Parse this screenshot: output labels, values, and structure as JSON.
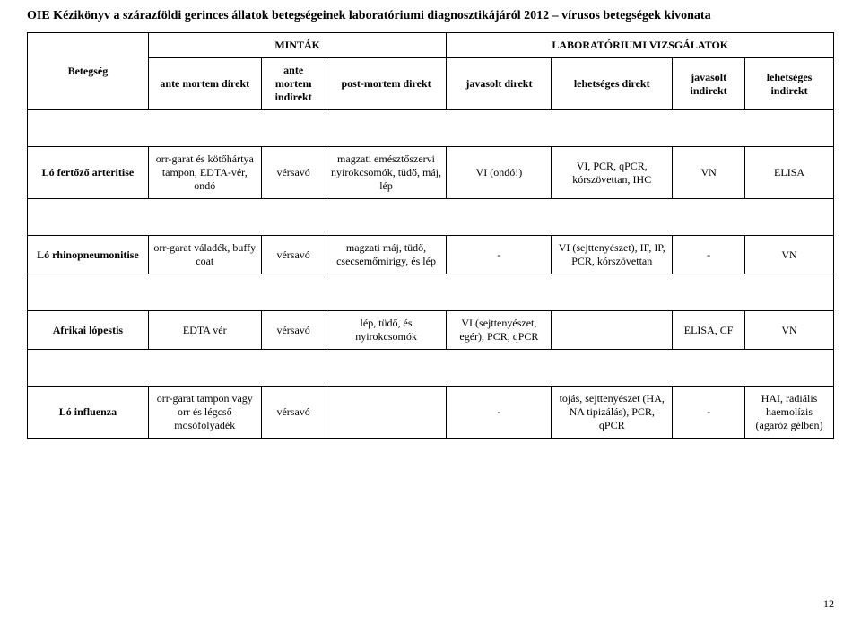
{
  "header": "OIE Kézikönyv a szárazföldi gerinces állatok betegségeinek laboratóriumi diagnosztikájáról 2012 – vírusos betegségek kivonata",
  "table": {
    "group_samples": "MINTÁK",
    "group_labtests": "LABORATÓRIUMI VIZSGÁLATOK",
    "col_disease": "Betegség",
    "col_amd": "ante mortem direkt",
    "col_ami": "ante mortem indirekt",
    "col_pmd": "post-mortem direkt",
    "col_jd": "javasolt direkt",
    "col_ld": "lehetséges direkt",
    "col_ji": "javasolt indirekt",
    "col_li": "lehetséges indirekt"
  },
  "rows": [
    {
      "disease": "Ló fertőző arteritise",
      "amd": "orr-garat és kötőhártya tampon, EDTA-vér, ondó",
      "ami": "vérsavó",
      "pmd": "magzati emésztőszervi nyirokcsomók, tüdő, máj, lép",
      "jd": "VI (ondó!)",
      "ld": "VI, PCR, qPCR, kórszövettan, IHC",
      "ji": "VN",
      "li": "ELISA"
    },
    {
      "disease": "Ló rhinopneumonitise",
      "amd": "orr-garat váladék, buffy coat",
      "ami": "vérsavó",
      "pmd": "magzati máj, tüdő, csecsemőmirigy, és lép",
      "jd": "-",
      "ld": "VI (sejttenyészet), IF, IP, PCR, kórszövettan",
      "ji": "-",
      "li": "VN"
    },
    {
      "disease": "Afrikai lópestis",
      "amd": "EDTA vér",
      "ami": "vérsavó",
      "pmd": "lép, tüdő, és nyirokcsomók",
      "jd": "VI (sejttenyészet, egér), PCR, qPCR",
      "ld": "",
      "ji": "ELISA, CF",
      "li": "VN"
    },
    {
      "disease": "Ló influenza",
      "amd": "orr-garat tampon vagy orr és légcső mosófolyadék",
      "ami": "vérsavó",
      "pmd": "",
      "jd": "-",
      "ld": "tojás, sejttenyészet (HA, NA tipizálás), PCR, qPCR",
      "ji": "-",
      "li": "HAI, radiális haemolízis (agaróz gélben)"
    }
  ],
  "page_number": "12"
}
